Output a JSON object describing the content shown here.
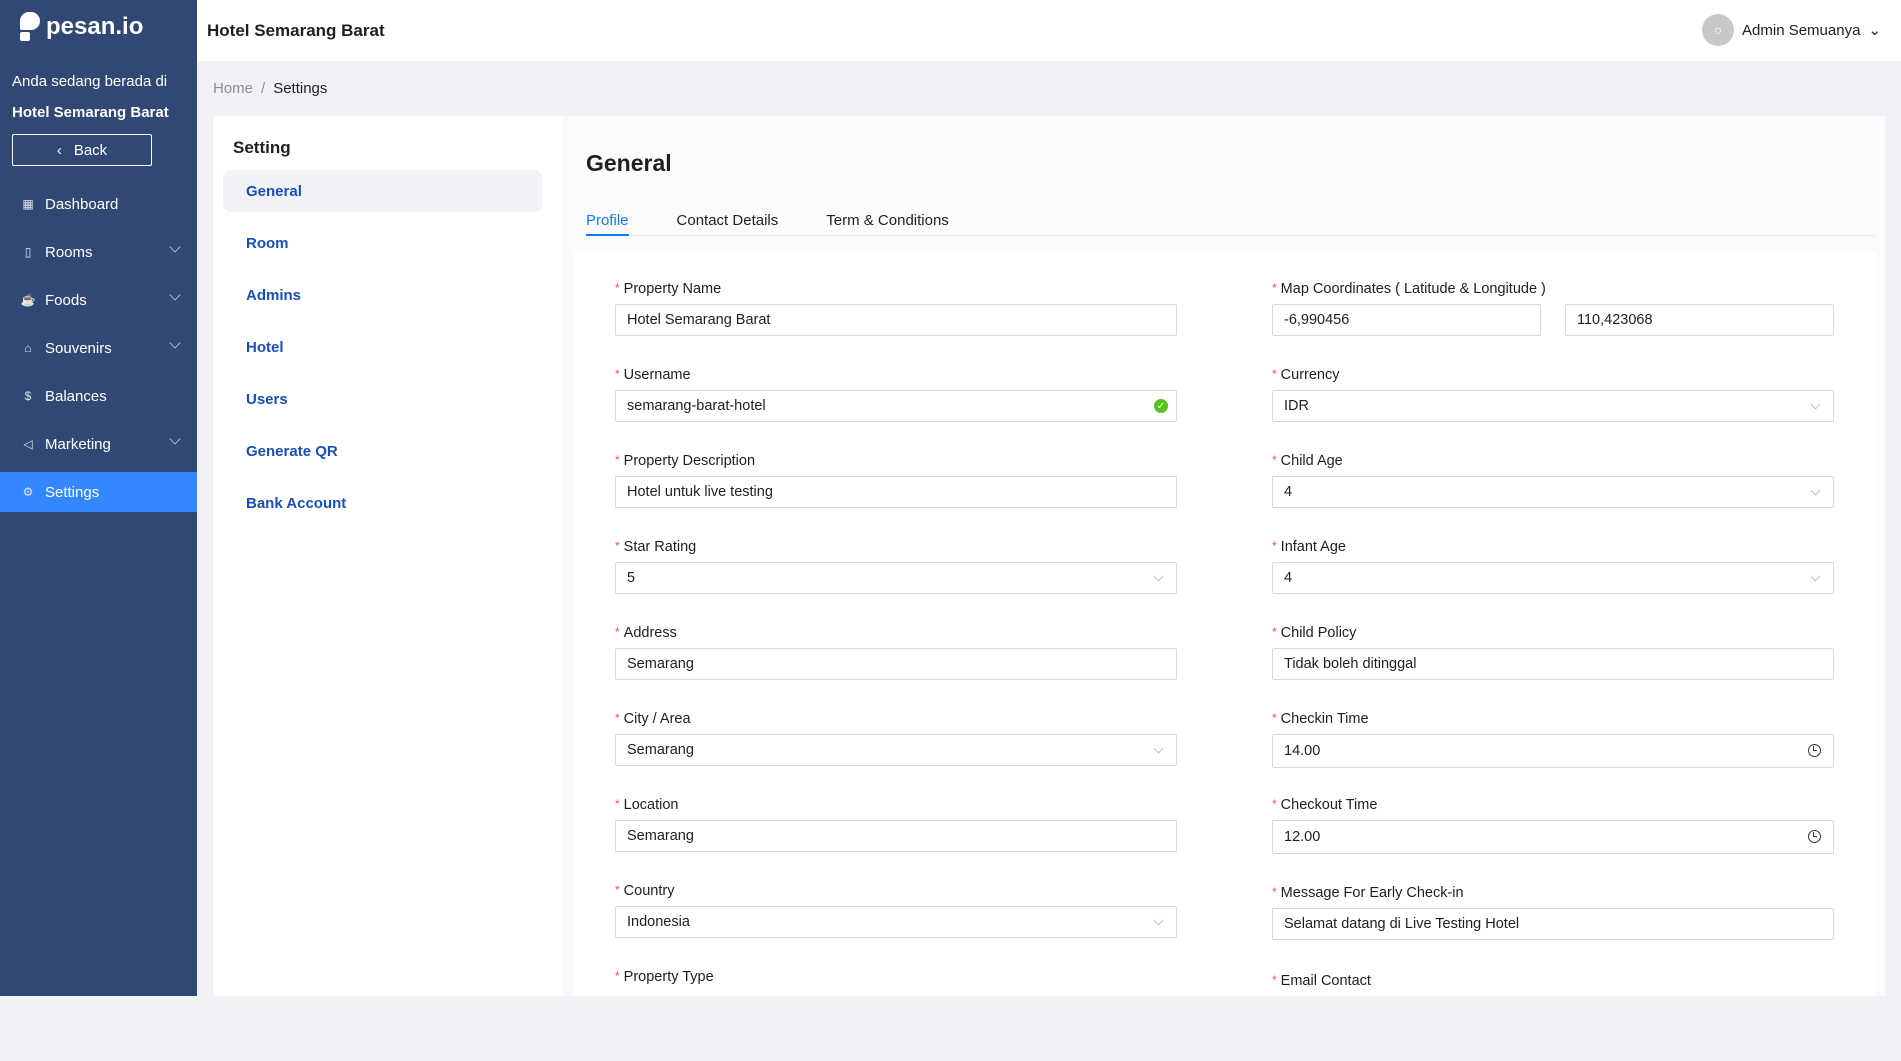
{
  "brand": "pesan.io",
  "sidebar": {
    "location_prefix": "Anda sedang berada di",
    "location_name": "Hotel Semarang Barat",
    "back_label": "Back",
    "items": [
      {
        "label": "Dashboard",
        "icon": "dashboard-icon",
        "glyph": "▦",
        "expand": false
      },
      {
        "label": "Rooms",
        "icon": "door-icon",
        "glyph": "▯",
        "expand": true
      },
      {
        "label": "Foods",
        "icon": "cup-icon",
        "glyph": "☕",
        "expand": true
      },
      {
        "label": "Souvenirs",
        "icon": "gift-icon",
        "glyph": "⌂",
        "expand": true
      },
      {
        "label": "Balances",
        "icon": "money-icon",
        "glyph": "$",
        "expand": false
      },
      {
        "label": "Marketing",
        "icon": "megaphone-icon",
        "glyph": "◁",
        "expand": true
      },
      {
        "label": "Settings",
        "icon": "gear-icon",
        "glyph": "⚙",
        "expand": false,
        "active": true
      }
    ],
    "accent": "#3388ff",
    "background": "#304873"
  },
  "header": {
    "title": "Hotel Semarang Barat",
    "user": "Admin Semuanya"
  },
  "breadcrumb": {
    "home": "Home",
    "current": "Settings"
  },
  "settings_nav": {
    "title": "Setting",
    "items": [
      "General",
      "Room",
      "Admins",
      "Hotel",
      "Users",
      "Generate QR",
      "Bank Account"
    ],
    "active": "General"
  },
  "main": {
    "title": "General",
    "tabs": [
      {
        "label": "Profile",
        "active": true
      },
      {
        "label": "Contact Details"
      },
      {
        "label": "Term & Conditions"
      }
    ],
    "left_fields": [
      {
        "label": "Property Name",
        "value": "Hotel Semarang Barat",
        "type": "text"
      },
      {
        "label": "Username",
        "value": "semarang-barat-hotel",
        "type": "valid"
      },
      {
        "label": "Property Description",
        "value": "Hotel untuk live testing",
        "type": "text"
      },
      {
        "label": "Star Rating",
        "value": "5",
        "type": "select"
      },
      {
        "label": "Address",
        "value": "Semarang",
        "type": "text"
      },
      {
        "label": "City / Area",
        "value": "Semarang",
        "type": "select"
      },
      {
        "label": "Location",
        "value": "Semarang",
        "type": "text"
      },
      {
        "label": "Country",
        "value": "Indonesia",
        "type": "select"
      },
      {
        "label": "Property Type",
        "value": "",
        "type": "label"
      }
    ],
    "right_fields": [
      {
        "label": "Map Coordinates ( Latitude & Longitude )",
        "type": "coords",
        "lat": "-6,990456",
        "lng": "110,423068"
      },
      {
        "label": "Currency",
        "value": "IDR",
        "type": "select"
      },
      {
        "label": "Child Age",
        "value": "4",
        "type": "select"
      },
      {
        "label": "Infant Age",
        "value": "4",
        "type": "select"
      },
      {
        "label": "Child Policy",
        "value": "Tidak boleh ditinggal",
        "type": "text"
      },
      {
        "label": "Checkin Time",
        "value": "14.00",
        "type": "time"
      },
      {
        "label": "Checkout Time",
        "value": "12.00",
        "type": "time"
      },
      {
        "label": "Message For Early Check-in",
        "value": "Selamat datang di Live Testing Hotel",
        "type": "text"
      },
      {
        "label": "Email Contact",
        "value": "",
        "type": "label"
      }
    ]
  }
}
